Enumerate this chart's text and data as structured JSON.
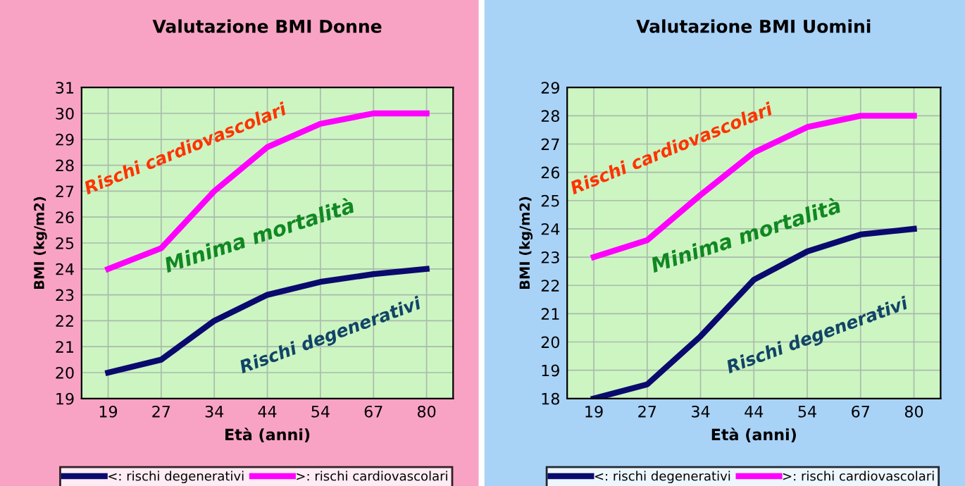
{
  "chart_data": [
    {
      "type": "line",
      "title": "Valutazione BMI Donne",
      "xlabel": "Età (anni)",
      "ylabel": "BMI (kg/m2)",
      "categories": [
        "19",
        "27",
        "34",
        "44",
        "54",
        "67",
        "80"
      ],
      "series": [
        {
          "name": "<: rischi degenerativi",
          "color": "#0a0a6e",
          "values": [
            20,
            20.5,
            22,
            23,
            23.5,
            23.8,
            24
          ]
        },
        {
          "name": ">: rischi cardiovascolari",
          "color": "#ff00ff",
          "values": [
            24,
            24.8,
            27,
            28.7,
            29.6,
            30,
            30
          ]
        }
      ],
      "ylim": [
        19,
        31
      ],
      "yticks": [
        19,
        20,
        21,
        22,
        23,
        24,
        25,
        26,
        27,
        28,
        29,
        30,
        31
      ],
      "grid": true,
      "legend": "bottom",
      "line_style": "solid",
      "annotations": [
        "Rischi cardiovascolari",
        "Minima mortalità",
        "Rischi degenerativi"
      ]
    },
    {
      "type": "line",
      "title": "Valutazione BMI Uomini",
      "xlabel": "Età (anni)",
      "ylabel": "BMI (kg/m2)",
      "categories": [
        "19",
        "27",
        "34",
        "44",
        "54",
        "67",
        "80"
      ],
      "series": [
        {
          "name": "<: rischi degenerativi",
          "color": "#0a0a6e",
          "values": [
            18,
            18.5,
            20.2,
            22.2,
            23.2,
            23.8,
            24
          ]
        },
        {
          "name": ">: rischi cardiovascolari",
          "color": "#ff00ff",
          "values": [
            23,
            23.6,
            25.2,
            26.7,
            27.6,
            28,
            28
          ]
        }
      ],
      "ylim": [
        18,
        29
      ],
      "yticks": [
        18,
        19,
        20,
        21,
        22,
        23,
        24,
        25,
        26,
        27,
        28,
        29
      ],
      "grid": true,
      "legend": "bottom",
      "line_style": "solid",
      "annotations": [
        "Rischi cardiovascolari",
        "Minima mortalità",
        "Rischi degenerativi"
      ]
    }
  ]
}
